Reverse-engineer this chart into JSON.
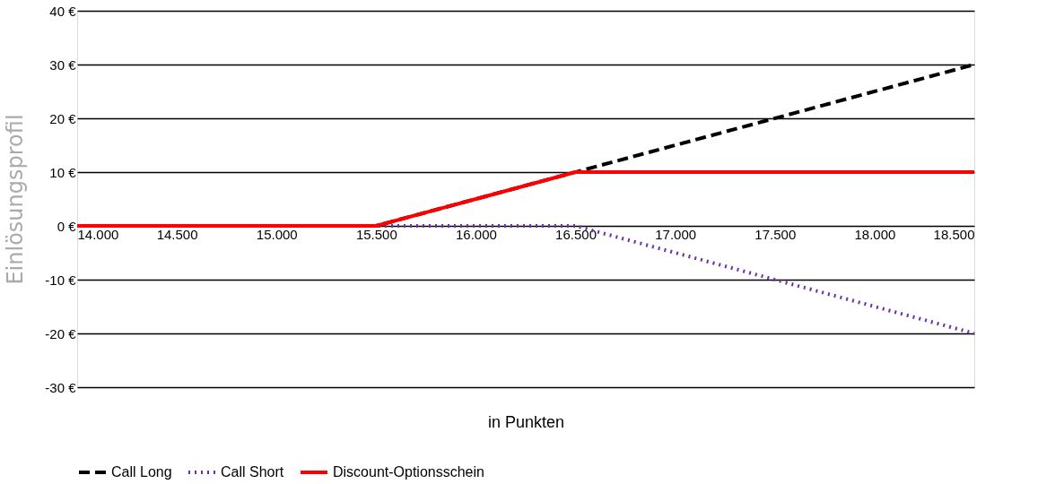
{
  "chart_data": {
    "type": "line",
    "ylabel": "Einlösungsprofil",
    "xlabel": "in Punkten",
    "xlim": [
      14000,
      18500
    ],
    "xticks": [
      {
        "value": 14000,
        "label": "14.000"
      },
      {
        "value": 14500,
        "label": "14.500"
      },
      {
        "value": 15000,
        "label": "15.000"
      },
      {
        "value": 15500,
        "label": "15.500"
      },
      {
        "value": 16000,
        "label": "16.000"
      },
      {
        "value": 16500,
        "label": "16.500"
      },
      {
        "value": 17000,
        "label": "17.000"
      },
      {
        "value": 17500,
        "label": "17.500"
      },
      {
        "value": 18000,
        "label": "18.000"
      },
      {
        "value": 18500,
        "label": "18.500"
      }
    ],
    "ylim": [
      -30,
      40
    ],
    "yticks": [
      {
        "value": -30,
        "label": "-30 €"
      },
      {
        "value": -20,
        "label": "-20 €"
      },
      {
        "value": -10,
        "label": "-10 €"
      },
      {
        "value": 0,
        "label": "0 €"
      },
      {
        "value": 10,
        "label": "10 €"
      },
      {
        "value": 20,
        "label": "20 €"
      },
      {
        "value": 30,
        "label": "30 €"
      },
      {
        "value": 40,
        "label": "40 €"
      }
    ],
    "grid": "y",
    "legend": "bottom",
    "marker": "none",
    "series": [
      {
        "name": "Call Long",
        "color": "#000000",
        "line_style": "dashed",
        "x": [
          14000,
          15500,
          18500
        ],
        "values": [
          0,
          0,
          30
        ]
      },
      {
        "name": "Call Short",
        "color": "#7030a0",
        "line_style": "dotted",
        "x": [
          14000,
          16500,
          18500
        ],
        "values": [
          0,
          0,
          -20
        ]
      },
      {
        "name": "Discount-Optionsschein",
        "color": "#ff0000",
        "line_style": "solid",
        "x": [
          14000,
          15500,
          16500,
          18500
        ],
        "values": [
          0,
          0,
          10,
          10
        ]
      }
    ]
  }
}
